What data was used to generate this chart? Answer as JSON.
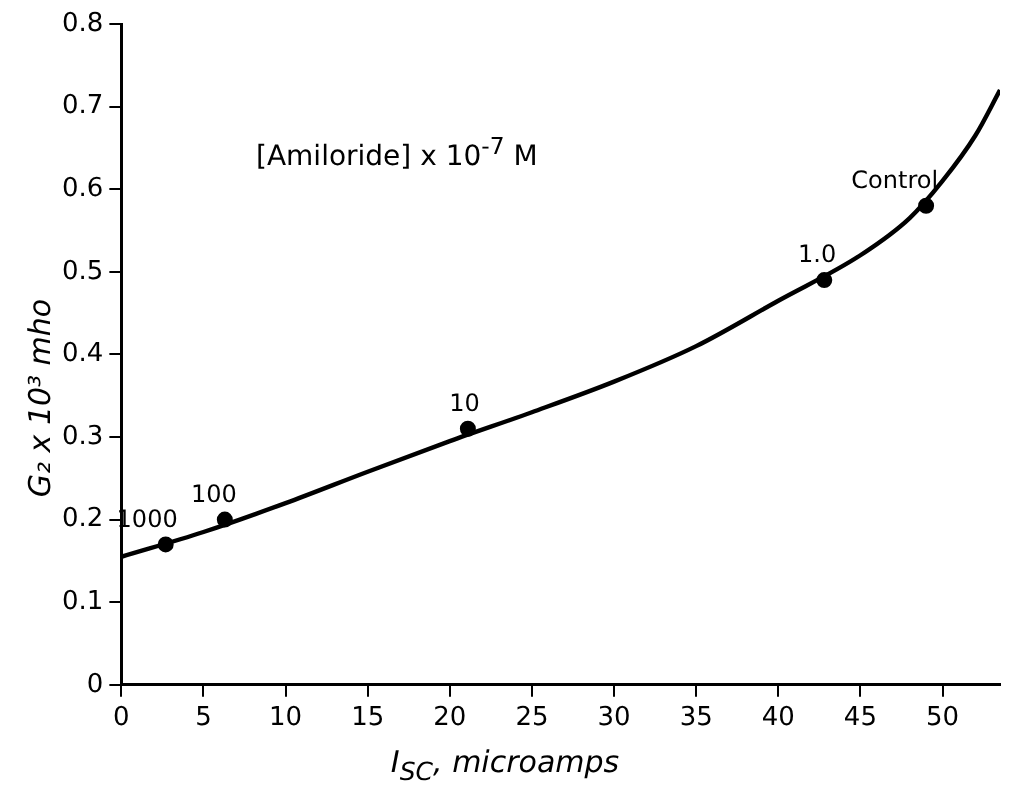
{
  "chart_data": {
    "type": "scatter",
    "xlabel": "I$_{SC}$, microamps",
    "ylabel": "G₂ x 10³ mho",
    "annotations": [
      "[Amiloride] x 10$^{-7}$ M",
      {
        "text": "1000",
        "x": 2.7,
        "y": 0.17
      },
      {
        "text": "100",
        "x": 6.3,
        "y": 0.2
      },
      {
        "text": "10",
        "x": 21.1,
        "y": 0.31
      },
      {
        "text": "1.0",
        "x": 42.8,
        "y": 0.49
      },
      {
        "text": "Control",
        "x": 49.0,
        "y": 0.58
      }
    ],
    "xlim": [
      0,
      53.5
    ],
    "xticks": [
      0,
      5,
      10,
      15,
      20,
      25,
      30,
      35,
      40,
      45,
      50
    ],
    "ylim": [
      0,
      0.8
    ],
    "yticks": [
      0,
      0.1,
      0.2,
      0.3,
      0.4,
      0.5,
      0.6,
      0.7,
      0.8
    ],
    "grid": false,
    "legend": false,
    "series": [
      {
        "type": "scatter",
        "color": "#000000",
        "marker": "circle",
        "x": [
          2.7,
          6.3,
          21.1,
          42.8,
          49.0
        ],
        "values": [
          0.17,
          0.2,
          0.31,
          0.49,
          0.58
        ]
      },
      {
        "type": "line",
        "color": "#000000",
        "marker": "none",
        "line_style": "solid",
        "x": [
          0,
          5,
          10,
          15,
          20,
          25,
          30,
          35,
          40,
          45,
          48,
          50,
          52,
          53.5
        ],
        "values": [
          0.155,
          0.185,
          0.22,
          0.258,
          0.295,
          0.33,
          0.367,
          0.41,
          0.465,
          0.52,
          0.565,
          0.61,
          0.665,
          0.72
        ]
      }
    ]
  }
}
